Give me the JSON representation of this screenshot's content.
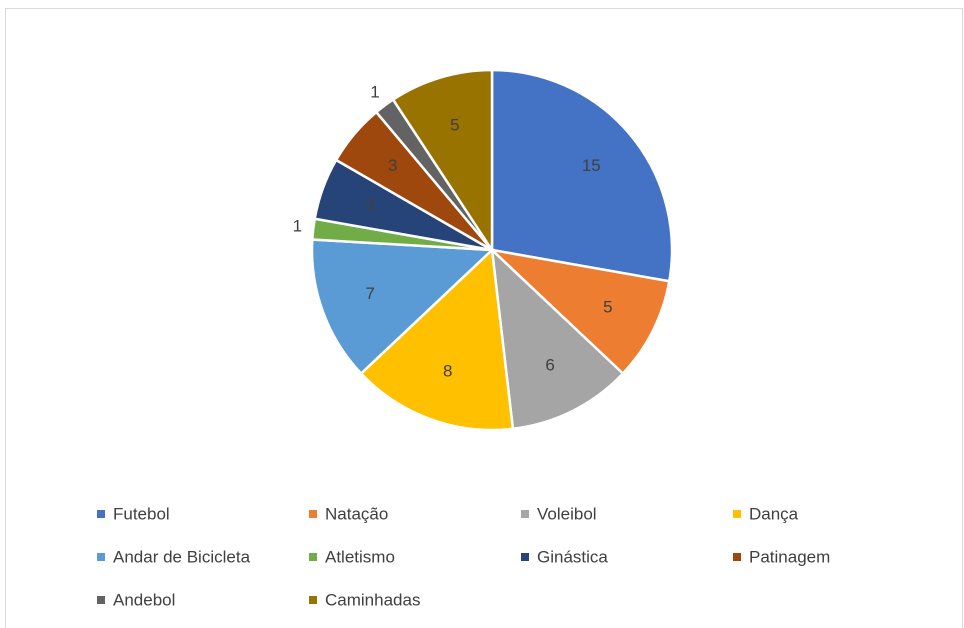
{
  "chart_data": {
    "type": "pie",
    "categories": [
      "Futebol",
      "Natação",
      "Voleibol",
      "Dança",
      "Andar de Bicicleta",
      "Atletismo",
      "Ginástica",
      "Patinagem",
      "Andebol",
      "Caminhadas"
    ],
    "values": [
      15,
      5,
      6,
      8,
      7,
      1,
      3,
      3,
      1,
      5
    ],
    "colors": [
      "#4472c4",
      "#ed7d31",
      "#a5a5a5",
      "#ffc000",
      "#5b9bd5",
      "#70ad47",
      "#264478",
      "#9e480e",
      "#636363",
      "#997300"
    ],
    "legend": "bottom"
  }
}
